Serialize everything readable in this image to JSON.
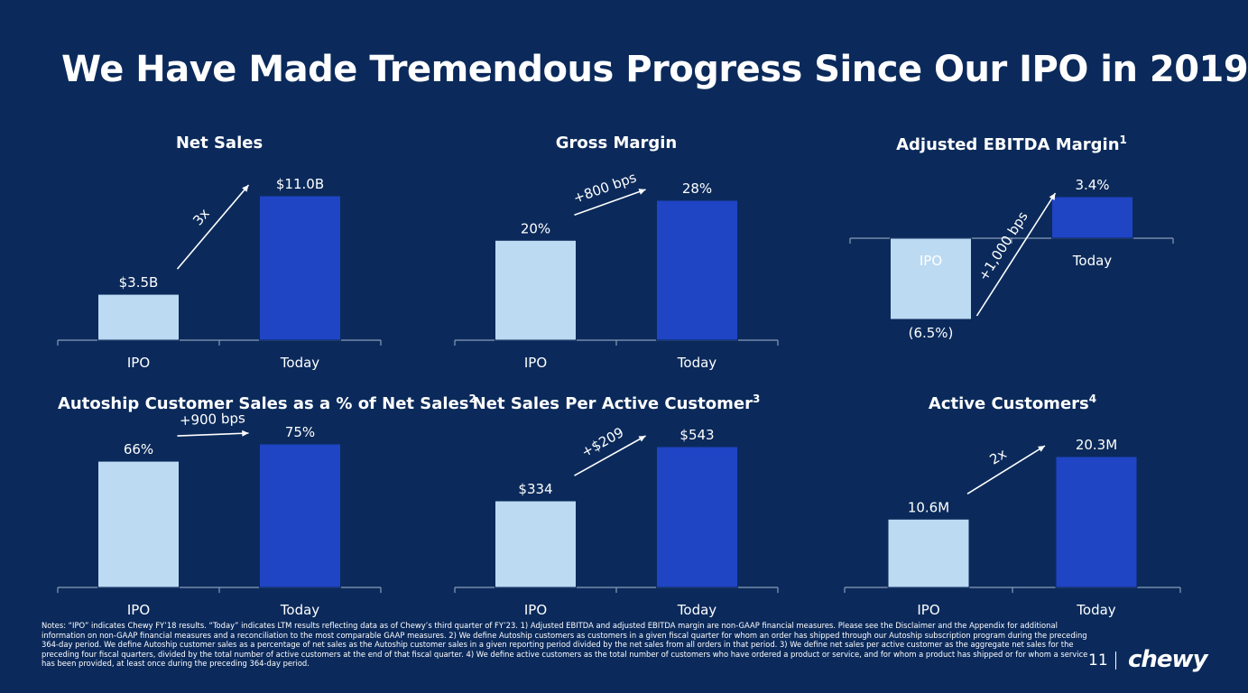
{
  "page": {
    "title": "We Have Made Tremendous Progress Since Our IPO in 2019",
    "notes": "Notes: “IPO” indicates Chewy FY’18 results. “Today” indicates LTM results reflecting data as of Chewy’s third quarter of FY’23. 1) Adjusted EBITDA and adjusted EBITDA margin are non-GAAP financial measures. Please see the Disclaimer and the Appendix for additional information on non-GAAP financial measures and a reconciliation to the most comparable GAAP measures. 2) We define Autoship customers as customers in a given fiscal quarter for whom an order has shipped through our Autoship subscription program during the preceding 364-day period. We define Autoship customer sales as a percentage of net sales as the Autoship customer sales in a given reporting period divided by the net sales from all orders in that period. 3) We define net sales per active customer as the aggregate net sales for the preceding four fiscal quarters, divided by the total number of active customers at the end of that fiscal quarter. 4) We define active customers as the total number of customers who have ordered a product or service, and for whom a product has shipped or for whom a service has been provided, at least once during the preceding 364-day period.",
    "page_number": "11",
    "logo_text": "chewy"
  },
  "colors": {
    "background": "#0b2a5b",
    "ipo_bar": "#bcdaf2",
    "today_bar": "#1f44c4"
  },
  "chart_data": [
    {
      "type": "bar",
      "title": "Net Sales",
      "footnote": "",
      "categories": [
        "IPO",
        "Today"
      ],
      "values": [
        3.5,
        11.0
      ],
      "labels": [
        "$3.5B",
        "$11.0B"
      ],
      "unit": "$B",
      "ylim": [
        0,
        11.0
      ],
      "change_label": "3x"
    },
    {
      "type": "bar",
      "title": "Gross Margin",
      "footnote": "",
      "categories": [
        "IPO",
        "Today"
      ],
      "values": [
        20,
        28
      ],
      "labels": [
        "20%",
        "28%"
      ],
      "unit": "%",
      "ylim": [
        0,
        28
      ],
      "change_label": "+800 bps"
    },
    {
      "type": "bar",
      "title": "Adjusted EBITDA Margin",
      "footnote": "1",
      "categories": [
        "IPO",
        "Today"
      ],
      "values": [
        -6.5,
        3.4
      ],
      "labels": [
        "(6.5%)",
        "3.4%"
      ],
      "unit": "%",
      "ylim": [
        -6.5,
        3.4
      ],
      "change_label": "+1,000 bps"
    },
    {
      "type": "bar",
      "title": "Autoship Customer Sales as a % of Net Sales",
      "footnote": "2",
      "categories": [
        "IPO",
        "Today"
      ],
      "values": [
        66,
        75
      ],
      "labels": [
        "66%",
        "75%"
      ],
      "unit": "%",
      "ylim": [
        0,
        75
      ],
      "change_label": "+900 bps"
    },
    {
      "type": "bar",
      "title": "Net Sales Per Active Customer",
      "footnote": "3",
      "categories": [
        "IPO",
        "Today"
      ],
      "values": [
        334,
        543
      ],
      "labels": [
        "$334",
        "$543"
      ],
      "unit": "$",
      "ylim": [
        0,
        543
      ],
      "change_label": "+$209"
    },
    {
      "type": "bar",
      "title": "Active Customers",
      "footnote": "4",
      "categories": [
        "IPO",
        "Today"
      ],
      "values": [
        10.6,
        20.3
      ],
      "labels": [
        "10.6M",
        "20.3M"
      ],
      "unit": "M",
      "ylim": [
        0,
        20.3
      ],
      "change_label": "2x"
    }
  ]
}
